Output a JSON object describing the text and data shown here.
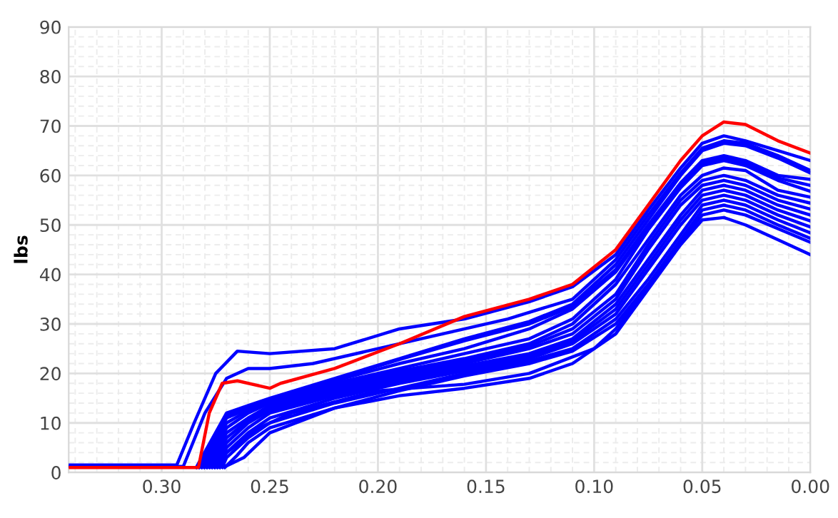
{
  "chart_data": {
    "type": "line",
    "ylabel": "lbs",
    "xlim": [
      0.343,
      0.0
    ],
    "ylim": [
      0,
      90
    ],
    "xticks": [
      {
        "value": 0.3,
        "label": "0.30"
      },
      {
        "value": 0.25,
        "label": "0.25"
      },
      {
        "value": 0.2,
        "label": "0.20"
      },
      {
        "value": 0.15,
        "label": "0.15"
      },
      {
        "value": 0.1,
        "label": "0.10"
      },
      {
        "value": 0.05,
        "label": "0.05"
      },
      {
        "value": 0.0,
        "label": "0.00"
      }
    ],
    "yticks": [
      0,
      10,
      20,
      30,
      40,
      50,
      60,
      70,
      80,
      90
    ],
    "grid": true,
    "series": [
      {
        "color": "#0000ff",
        "x": [
          0.343,
          0.293,
          0.285,
          0.275,
          0.265,
          0.25,
          0.22,
          0.19,
          0.16,
          0.13,
          0.11,
          0.09,
          0.075,
          0.06,
          0.05,
          0.04,
          0.03,
          0.015,
          0.0
        ],
        "values": [
          1.5,
          1.5,
          10,
          20,
          24.5,
          24,
          25,
          29,
          31,
          34.5,
          37.5,
          44,
          53,
          61.5,
          66.5,
          68,
          67,
          65,
          63
        ]
      },
      {
        "color": "#0000ff",
        "x": [
          0.343,
          0.29,
          0.28,
          0.27,
          0.26,
          0.25,
          0.23,
          0.2,
          0.17,
          0.14,
          0.11,
          0.09,
          0.075,
          0.06,
          0.05,
          0.04,
          0.03,
          0.015,
          0.0
        ],
        "values": [
          1.2,
          1.2,
          12,
          19,
          21,
          21,
          22,
          25,
          28,
          31,
          35,
          43,
          52,
          60.5,
          65.5,
          67,
          66.5,
          64,
          61
        ]
      },
      {
        "color": "#0000ff",
        "x": [
          0.284,
          0.27,
          0.26,
          0.25,
          0.22,
          0.19,
          0.16,
          0.13,
          0.11,
          0.09,
          0.075,
          0.06,
          0.05,
          0.04,
          0.03,
          0.015,
          0.0
        ],
        "values": [
          1,
          12,
          13.5,
          15,
          19,
          23,
          27,
          30.5,
          34,
          42,
          51,
          60,
          65,
          66.5,
          66,
          63.5,
          60.5
        ]
      },
      {
        "color": "#0000ff",
        "x": [
          0.2828,
          0.27,
          0.26,
          0.25,
          0.22,
          0.19,
          0.16,
          0.13,
          0.11,
          0.09,
          0.075,
          0.06,
          0.05,
          0.04,
          0.03,
          0.015,
          0.0
        ],
        "values": [
          1,
          11.5,
          13,
          14.6,
          18.8,
          22.8,
          26.6,
          30,
          33.5,
          41,
          50,
          58.5,
          63,
          64,
          63,
          60,
          59.2
        ]
      },
      {
        "color": "#0000ff",
        "x": [
          0.2816,
          0.27,
          0.26,
          0.25,
          0.22,
          0.19,
          0.16,
          0.13,
          0.11,
          0.09,
          0.075,
          0.06,
          0.05,
          0.04,
          0.03,
          0.015,
          0.0
        ],
        "values": [
          1,
          11,
          12.8,
          14.4,
          18.5,
          22,
          25,
          29,
          33,
          40.5,
          49.5,
          58,
          62.5,
          63.5,
          62.5,
          59.5,
          58
        ]
      },
      {
        "color": "#0000ff",
        "x": [
          0.2804,
          0.27,
          0.26,
          0.25,
          0.22,
          0.19,
          0.16,
          0.13,
          0.11,
          0.09,
          0.075,
          0.06,
          0.05,
          0.04,
          0.03,
          0.015,
          0.0
        ],
        "values": [
          1,
          10,
          12.5,
          14.2,
          18,
          21,
          24,
          27,
          31,
          39,
          49,
          57.5,
          62,
          63,
          62,
          59,
          56.8
        ]
      },
      {
        "color": "#0000ff",
        "x": [
          0.2792,
          0.27,
          0.26,
          0.25,
          0.22,
          0.19,
          0.16,
          0.13,
          0.11,
          0.09,
          0.075,
          0.06,
          0.05,
          0.04,
          0.03,
          0.015,
          0.0
        ],
        "values": [
          1,
          9,
          12,
          14,
          17.5,
          20.5,
          23,
          26,
          30,
          38,
          47,
          56,
          60,
          61.5,
          61,
          57,
          55.6
        ]
      },
      {
        "color": "#0000ff",
        "x": [
          0.278,
          0.27,
          0.26,
          0.25,
          0.22,
          0.19,
          0.16,
          0.13,
          0.11,
          0.09,
          0.075,
          0.06,
          0.05,
          0.04,
          0.03,
          0.015,
          0.0
        ],
        "values": [
          1,
          8,
          11,
          13.5,
          17,
          20,
          22.5,
          25.5,
          29,
          36,
          46,
          55,
          59,
          60,
          59,
          56,
          54.4
        ]
      },
      {
        "color": "#0000ff",
        "x": [
          0.2768,
          0.27,
          0.26,
          0.25,
          0.22,
          0.19,
          0.16,
          0.13,
          0.11,
          0.09,
          0.075,
          0.06,
          0.05,
          0.04,
          0.03,
          0.015,
          0.0
        ],
        "values": [
          1,
          7,
          10.5,
          13,
          16.5,
          19.5,
          22,
          25,
          28,
          35,
          45,
          54,
          58,
          59,
          58,
          55,
          53.2
        ]
      },
      {
        "color": "#0000ff",
        "x": [
          0.2756,
          0.27,
          0.26,
          0.25,
          0.22,
          0.19,
          0.16,
          0.13,
          0.11,
          0.09,
          0.075,
          0.06,
          0.05,
          0.04,
          0.03,
          0.015,
          0.0
        ],
        "values": [
          1,
          6,
          10,
          12.5,
          16,
          19,
          21.5,
          24,
          27,
          34,
          43,
          52,
          57,
          58,
          57,
          54,
          52
        ]
      },
      {
        "color": "#0000ff",
        "x": [
          0.2744,
          0.27,
          0.26,
          0.25,
          0.22,
          0.19,
          0.16,
          0.13,
          0.11,
          0.09,
          0.075,
          0.06,
          0.05,
          0.04,
          0.03,
          0.015,
          0.0
        ],
        "values": [
          1,
          5,
          9,
          12,
          15.5,
          18.5,
          21,
          23.5,
          26.5,
          33,
          42,
          51,
          56,
          57,
          56,
          53,
          50.8
        ]
      },
      {
        "color": "#0000ff",
        "x": [
          0.2732,
          0.27,
          0.26,
          0.25,
          0.22,
          0.19,
          0.16,
          0.13,
          0.11,
          0.09,
          0.075,
          0.06,
          0.05,
          0.04,
          0.03,
          0.015,
          0.0
        ],
        "values": [
          1,
          4,
          8,
          11,
          15,
          18,
          20.5,
          23,
          26,
          32,
          41,
          50,
          55,
          56,
          55,
          52,
          49.6
        ]
      },
      {
        "color": "#0000ff",
        "x": [
          0.272,
          0.27,
          0.26,
          0.25,
          0.22,
          0.19,
          0.16,
          0.13,
          0.11,
          0.09,
          0.075,
          0.06,
          0.05,
          0.04,
          0.03,
          0.015,
          0.0
        ],
        "values": [
          1,
          3,
          7,
          10,
          14,
          17,
          20,
          22.5,
          25,
          31,
          39,
          48,
          54,
          55,
          54,
          51,
          48.4
        ]
      },
      {
        "color": "#0000ff",
        "x": [
          0.2708,
          0.265,
          0.26,
          0.25,
          0.22,
          0.19,
          0.16,
          0.13,
          0.11,
          0.09,
          0.075,
          0.06,
          0.05,
          0.04,
          0.03,
          0.015,
          0.0
        ],
        "values": [
          1,
          3.5,
          6,
          9,
          13,
          16.5,
          19.5,
          22,
          24.5,
          30,
          38,
          47,
          53,
          54,
          53,
          50,
          47.3
        ]
      },
      {
        "color": "#0000ff",
        "x": [
          0.282,
          0.278,
          0.27,
          0.255,
          0.24,
          0.2,
          0.16,
          0.13,
          0.1,
          0.09,
          0.075,
          0.06,
          0.05,
          0.04,
          0.03,
          0.0
        ],
        "values": [
          1.1,
          1.1,
          4,
          9,
          12,
          16.5,
          17.8,
          20,
          25,
          29,
          37.5,
          46.5,
          52,
          53,
          52,
          46.5
        ]
      },
      {
        "color": "#0000ff",
        "x": [
          0.28,
          0.27,
          0.262,
          0.25,
          0.22,
          0.19,
          0.16,
          0.13,
          0.11,
          0.09,
          0.075,
          0.06,
          0.05,
          0.04,
          0.03,
          0.015,
          0.0
        ],
        "values": [
          1.3,
          1.3,
          3,
          8,
          13,
          15.5,
          17,
          19,
          22,
          28,
          37,
          46,
          51,
          51.5,
          50,
          47,
          44
        ]
      },
      {
        "color": "#ff0000",
        "x": [
          0.343,
          0.283,
          0.278,
          0.272,
          0.265,
          0.25,
          0.245,
          0.22,
          0.19,
          0.16,
          0.13,
          0.11,
          0.09,
          0.075,
          0.06,
          0.05,
          0.04,
          0.03,
          0.015,
          0.0
        ],
        "values": [
          1,
          1,
          12,
          18,
          18.5,
          17,
          18,
          21,
          26,
          31.5,
          35,
          38,
          45,
          54,
          63,
          68,
          70.8,
          70.3,
          67,
          64.5
        ]
      }
    ]
  }
}
